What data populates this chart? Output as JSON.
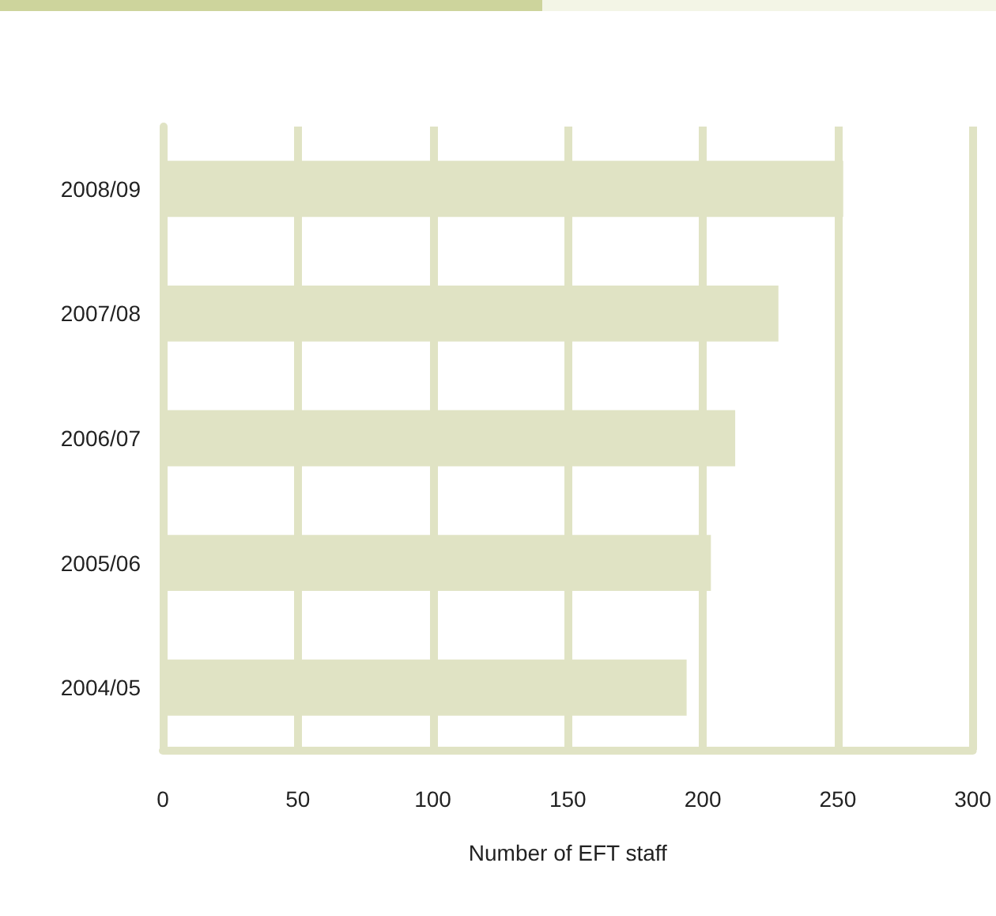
{
  "chart_data": {
    "type": "bar",
    "orientation": "horizontal",
    "xlabel": "Number of EFT staff",
    "categories": [
      "2008/09",
      "2007/08",
      "2006/07",
      "2005/06",
      "2004/05"
    ],
    "values": [
      252,
      228,
      212,
      203,
      194
    ],
    "color": "#e0e3c4",
    "xlim": [
      0,
      300
    ],
    "xticks": [
      0,
      50,
      100,
      150,
      200,
      250,
      300
    ],
    "grid": "x"
  }
}
